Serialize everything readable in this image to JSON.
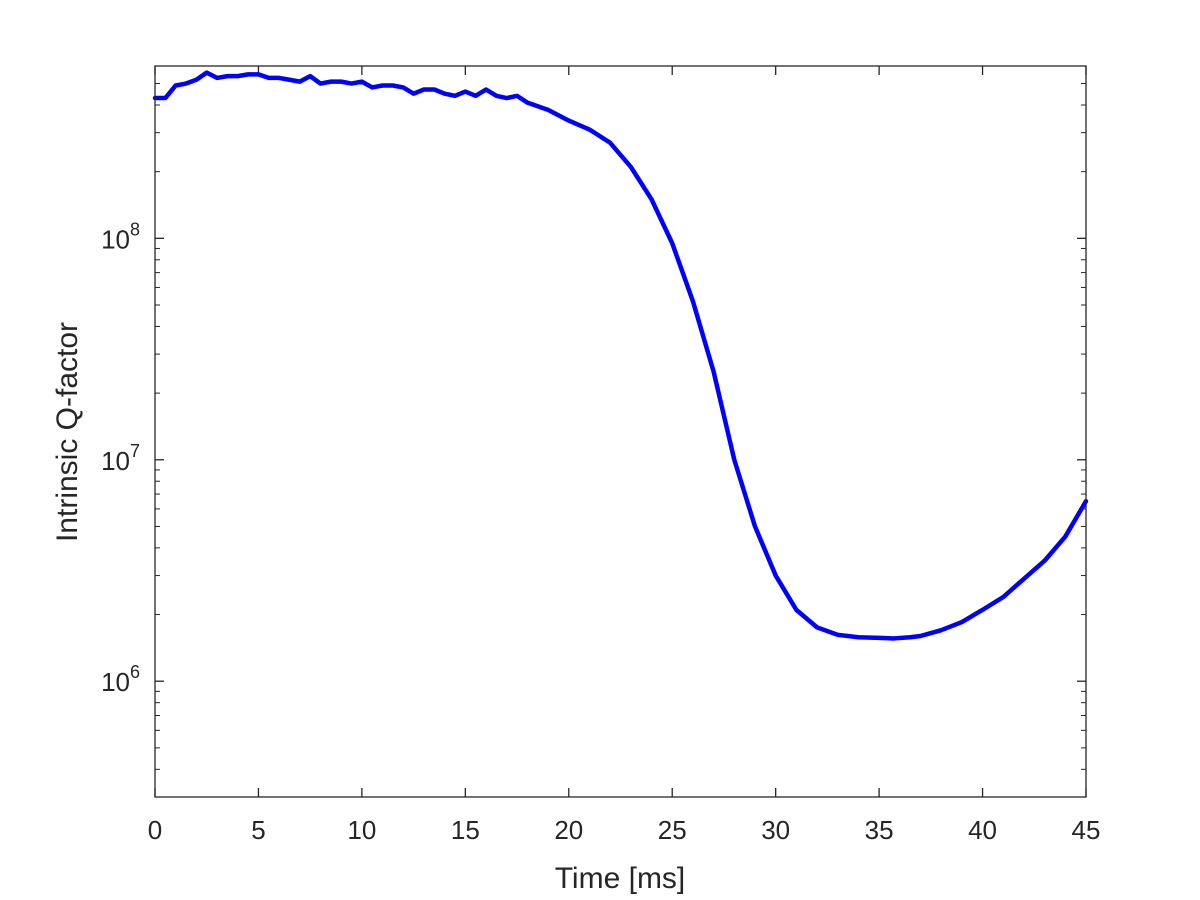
{
  "chart_data": {
    "type": "line",
    "title": "",
    "xlabel": "Time [ms]",
    "ylabel": "Intrinsic Q-factor",
    "xlim": [
      0,
      45
    ],
    "ylim": [
      300000,
      600000000
    ],
    "yscale": "log",
    "grid": false,
    "legend": "none",
    "x_ticks": [
      {
        "value": 0,
        "label": "0"
      },
      {
        "value": 5,
        "label": "5"
      },
      {
        "value": 10,
        "label": "10"
      },
      {
        "value": 15,
        "label": "15"
      },
      {
        "value": 20,
        "label": "20"
      },
      {
        "value": 25,
        "label": "25"
      },
      {
        "value": 30,
        "label": "30"
      },
      {
        "value": 35,
        "label": "35"
      },
      {
        "value": 40,
        "label": "40"
      },
      {
        "value": 45,
        "label": "45"
      }
    ],
    "y_ticks": [
      {
        "value": 1000000,
        "base": "10",
        "exp": "6"
      },
      {
        "value": 10000000,
        "base": "10",
        "exp": "7"
      },
      {
        "value": 100000000,
        "base": "10",
        "exp": "8"
      }
    ],
    "series": [
      {
        "color": "#0000ff",
        "x": [
          0,
          0.5,
          1,
          1.5,
          2,
          2.5,
          3,
          3.5,
          4,
          4.5,
          5,
          5.5,
          6,
          6.5,
          7,
          7.5,
          8,
          8.5,
          9,
          9.5,
          10,
          10.5,
          11,
          11.5,
          12,
          12.5,
          13,
          13.5,
          14,
          14.5,
          15,
          15.5,
          16,
          16.5,
          17,
          17.5,
          18,
          19,
          20,
          21,
          22,
          23,
          24,
          25,
          26,
          27,
          28,
          29,
          30,
          31,
          32,
          33,
          34,
          35,
          35.7,
          36.5,
          37,
          38,
          39,
          40,
          41,
          42,
          43,
          44,
          45
        ],
        "y": [
          430000000,
          430000000,
          490000000,
          500000000,
          520000000,
          560000000,
          530000000,
          540000000,
          540000000,
          550000000,
          550000000,
          530000000,
          530000000,
          520000000,
          510000000,
          540000000,
          500000000,
          510000000,
          510000000,
          500000000,
          510000000,
          480000000,
          490000000,
          490000000,
          480000000,
          450000000,
          470000000,
          470000000,
          450000000,
          440000000,
          460000000,
          440000000,
          470000000,
          440000000,
          430000000,
          440000000,
          410000000,
          380000000,
          340000000,
          310000000,
          270000000,
          210000000,
          150000000,
          95000000,
          52000000,
          25000000,
          10000000,
          5000000,
          3000000,
          2100000,
          1750000,
          1620000,
          1580000,
          1570000,
          1560000,
          1580000,
          1600000,
          1700000,
          1850000,
          2100000,
          2400000,
          2900000,
          3500000,
          4500000,
          6500000
        ]
      }
    ]
  }
}
